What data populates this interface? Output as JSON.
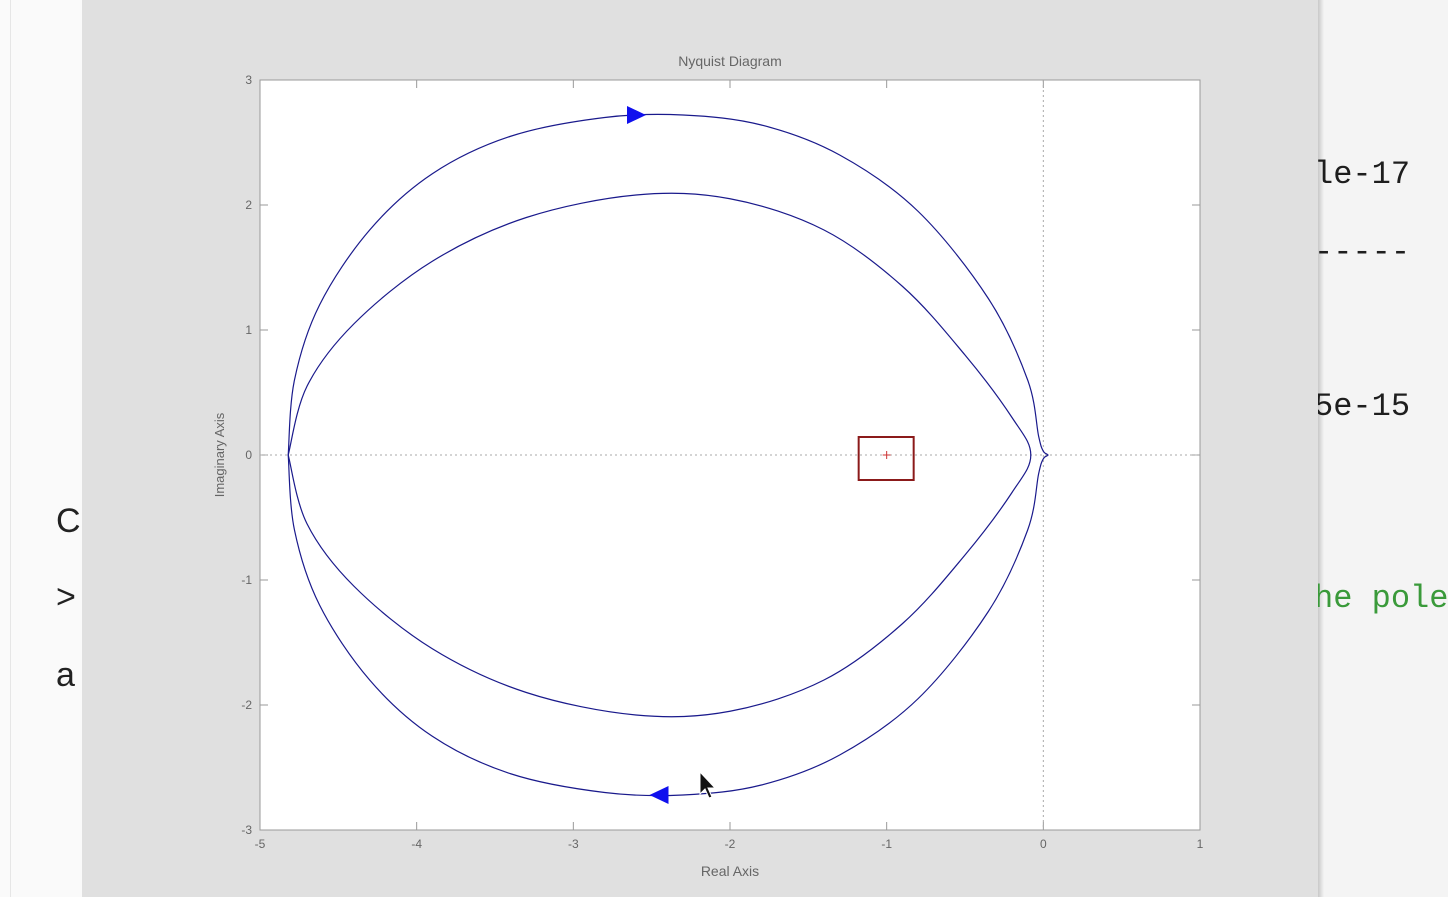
{
  "background": {
    "left_fragments": [
      "C",
      ">",
      "a"
    ],
    "right_code": [
      {
        "text": "le-17",
        "color": "#1e1e1e"
      },
      {
        "text": "-----",
        "color": "#1e1e1e"
      },
      {
        "text": "5e-15",
        "color": "#1e1e1e"
      },
      {
        "text": "he pole",
        "color": "#3a9a3a"
      }
    ]
  },
  "chart_data": {
    "type": "line",
    "title": "Nyquist Diagram",
    "xlabel": "Real Axis",
    "ylabel": "Imaginary Axis",
    "xlim": [
      -5,
      1
    ],
    "ylim": [
      -3,
      3
    ],
    "xticks": [
      -5,
      -4,
      -3,
      -2,
      -1,
      0,
      1
    ],
    "yticks": [
      -3,
      -2,
      -1,
      0,
      1,
      2,
      3
    ],
    "grid": "dotted zero lines",
    "series": [
      {
        "color": "#1a1a8c",
        "points": [
          [
            -4.82,
            0
          ],
          [
            -4.78,
            -0.6
          ],
          [
            -4.62,
            -1.2
          ],
          [
            -4.3,
            -1.8
          ],
          [
            -3.9,
            -2.25
          ],
          [
            -3.4,
            -2.55
          ],
          [
            -2.8,
            -2.7
          ],
          [
            -2.3,
            -2.72
          ],
          [
            -1.8,
            -2.64
          ],
          [
            -1.3,
            -2.4
          ],
          [
            -0.8,
            -1.95
          ],
          [
            -0.35,
            -1.25
          ],
          [
            -0.1,
            -0.6
          ],
          [
            -0.03,
            -0.15
          ],
          [
            0.0,
            -0.03
          ],
          [
            0.03,
            0.0
          ],
          [
            0.0,
            0.03
          ],
          [
            -0.03,
            0.15
          ],
          [
            -0.1,
            0.6
          ],
          [
            -0.35,
            1.25
          ],
          [
            -0.8,
            1.95
          ],
          [
            -1.3,
            2.4
          ],
          [
            -1.8,
            2.64
          ],
          [
            -2.3,
            2.72
          ],
          [
            -2.8,
            2.7
          ],
          [
            -3.4,
            2.55
          ],
          [
            -3.9,
            2.25
          ],
          [
            -4.3,
            1.8
          ],
          [
            -4.62,
            1.2
          ],
          [
            -4.78,
            0.6
          ],
          [
            -4.82,
            0
          ]
        ]
      },
      {
        "color": "#1a1a8c",
        "points": [
          [
            -4.82,
            0
          ],
          [
            -4.7,
            -0.55
          ],
          [
            -4.4,
            -1.05
          ],
          [
            -3.9,
            -1.55
          ],
          [
            -3.3,
            -1.9
          ],
          [
            -2.6,
            -2.08
          ],
          [
            -2.0,
            -2.05
          ],
          [
            -1.4,
            -1.8
          ],
          [
            -0.9,
            -1.35
          ],
          [
            -0.5,
            -0.8
          ],
          [
            -0.2,
            -0.3
          ],
          [
            -0.08,
            0.0
          ],
          [
            -0.2,
            0.3
          ],
          [
            -0.5,
            0.8
          ],
          [
            -0.9,
            1.35
          ],
          [
            -1.4,
            1.8
          ],
          [
            -2.0,
            2.05
          ],
          [
            -2.6,
            2.08
          ],
          [
            -3.3,
            1.9
          ],
          [
            -3.9,
            1.55
          ],
          [
            -4.4,
            1.05
          ],
          [
            -4.7,
            0.55
          ],
          [
            -4.82,
            0
          ]
        ]
      }
    ],
    "arrows": [
      {
        "x": -2.6,
        "y": 2.72,
        "direction": "right",
        "color": "#1010ee"
      },
      {
        "x": -2.45,
        "y": -2.72,
        "direction": "left",
        "color": "#1010ee"
      }
    ],
    "critical_point": {
      "x": -1,
      "y": 0,
      "marker": "+",
      "color": "#cc3333"
    },
    "highlight_box_color": "#8b1a1a"
  }
}
